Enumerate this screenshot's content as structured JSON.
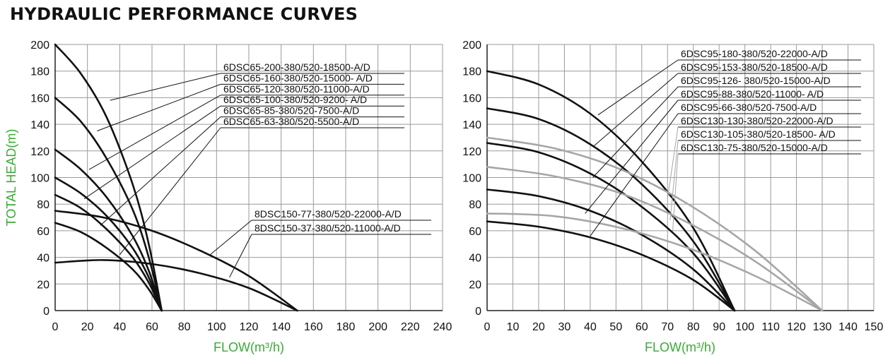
{
  "title": "HYDRAULIC PERFORMANCE CURVES",
  "colors": {
    "axis_label": "#3aaa35",
    "curve": "#111111",
    "curve_alt": "#a6a6a6",
    "grid": "#9a9a9a"
  },
  "chart_data": [
    {
      "type": "line",
      "xlabel": "FLOW(m³/h)",
      "ylabel": "TOTAL HEAD(m)",
      "xlim": [
        0,
        240
      ],
      "ylim": [
        0,
        200
      ],
      "xticks": [
        "0",
        "20",
        "40",
        "60",
        "80",
        "100",
        "120",
        "140",
        "160",
        "180",
        "200",
        "220",
        "240"
      ],
      "yticks": [
        "0",
        "20",
        "40",
        "60",
        "80",
        "100",
        "120",
        "140",
        "160",
        "180",
        "200"
      ],
      "grid": true,
      "series": [
        {
          "name": "6DSC65-200-380/520-18500-A/D",
          "color": "#111111",
          "x": [
            0,
            16,
            32,
            48,
            58,
            66
          ],
          "y": [
            200,
            178,
            145,
            95,
            50,
            0
          ]
        },
        {
          "name": "6DSC65-160-380/520-15000- A/D",
          "color": "#111111",
          "x": [
            0,
            16,
            32,
            48,
            58,
            66
          ],
          "y": [
            160,
            142,
            114,
            76,
            40,
            0
          ]
        },
        {
          "name": "6DSC65-120-380/520-11000-A/D",
          "color": "#111111",
          "x": [
            0,
            16,
            32,
            48,
            58,
            66
          ],
          "y": [
            121,
            106,
            85,
            56,
            30,
            0
          ]
        },
        {
          "name": "6DSC65-100-380/520-9200- A/D",
          "color": "#111111",
          "x": [
            0,
            16,
            32,
            48,
            58,
            66
          ],
          "y": [
            100,
            88,
            71,
            47,
            25,
            0
          ]
        },
        {
          "name": "6DSC65-85-380/520-7500-A/D",
          "color": "#111111",
          "x": [
            0,
            16,
            32,
            48,
            58,
            66
          ],
          "y": [
            87,
            77,
            61,
            40,
            21,
            0
          ]
        },
        {
          "name": "6DSC65-63-380/520-5500-A/D",
          "color": "#111111",
          "x": [
            0,
            16,
            32,
            48,
            58,
            66
          ],
          "y": [
            66,
            59,
            47,
            31,
            16,
            0
          ]
        },
        {
          "name": "8DSC150-77-380/520-22000-A/D",
          "color": "#111111",
          "x": [
            0,
            30,
            60,
            90,
            120,
            150
          ],
          "y": [
            75,
            70,
            60,
            45,
            26,
            0
          ]
        },
        {
          "name": "8DSC150-37-380/520-11000-A/D",
          "color": "#111111",
          "x": [
            0,
            30,
            60,
            90,
            120,
            150
          ],
          "y": [
            36,
            38,
            35,
            28,
            17,
            0
          ]
        }
      ],
      "annotations": [
        {
          "label": "6DSC65-200-380/520-18500-A/D",
          "at": [
            34,
            158
          ]
        },
        {
          "label": "6DSC65-160-380/520-15000- A/D",
          "at": [
            26,
            135
          ]
        },
        {
          "label": "6DSC65-120-380/520-11000-A/D",
          "at": [
            21,
            106
          ]
        },
        {
          "label": "6DSC65-100-380/520-9200- A/D",
          "at": [
            18,
            84
          ]
        },
        {
          "label": "6DSC65-85-380/520-7500-A/D",
          "at": [
            28,
            64
          ]
        },
        {
          "label": "6DSC65-63-380/520-5500-A/D",
          "at": [
            40,
            42
          ]
        },
        {
          "label": "8DSC150-77-380/520-22000-A/D",
          "at": [
            96,
            42
          ]
        },
        {
          "label": "8DSC150-37-380/520-11000-A/D",
          "at": [
            108,
            25
          ]
        }
      ]
    },
    {
      "type": "line",
      "xlabel": "FLOW(m³/h)",
      "ylabel": "",
      "xlim": [
        0,
        150
      ],
      "ylim": [
        0,
        200
      ],
      "xticks": [
        "0",
        "10",
        "20",
        "30",
        "40",
        "50",
        "60",
        "70",
        "80",
        "90",
        "100",
        "110",
        "120",
        "130",
        "140",
        "150"
      ],
      "yticks": [
        "0",
        "20",
        "40",
        "60",
        "80",
        "100",
        "120",
        "140",
        "160",
        "180",
        "200"
      ],
      "grid": true,
      "series": [
        {
          "name": "6DSC95-180-380/520-22000-A/D",
          "color": "#111111",
          "x": [
            0,
            20,
            40,
            60,
            80,
            96
          ],
          "y": [
            180,
            170,
            148,
            112,
            62,
            0
          ]
        },
        {
          "name": "6DSC95-153-380/520-18500-A/D",
          "color": "#111111",
          "x": [
            0,
            20,
            40,
            60,
            80,
            96
          ],
          "y": [
            152,
            144,
            125,
            95,
            52,
            0
          ]
        },
        {
          "name": "6DSC95-126- 380/520-15000-A/D",
          "color": "#111111",
          "x": [
            0,
            20,
            40,
            60,
            80,
            96
          ],
          "y": [
            126,
            119,
            103,
            78,
            43,
            0
          ]
        },
        {
          "name": "6DSC95-88-380/520-11000- A/D",
          "color": "#111111",
          "x": [
            0,
            20,
            40,
            60,
            80,
            96
          ],
          "y": [
            91,
            86,
            75,
            57,
            31,
            0
          ]
        },
        {
          "name": "6DSC95-66-380/520-7500-A/D",
          "color": "#111111",
          "x": [
            0,
            20,
            40,
            60,
            80,
            96
          ],
          "y": [
            67,
            63,
            55,
            42,
            23,
            0
          ]
        },
        {
          "name": "6DSC130-130-380/520-22000-A/D",
          "color": "#a6a6a6",
          "x": [
            0,
            26,
            52,
            78,
            104,
            130
          ],
          "y": [
            130,
            122,
            106,
            80,
            45,
            0
          ]
        },
        {
          "name": "6DSC130-105-380/520-18500- A/D",
          "color": "#a6a6a6",
          "x": [
            0,
            26,
            52,
            78,
            104,
            130
          ],
          "y": [
            108,
            101,
            88,
            66,
            37,
            0
          ]
        },
        {
          "name": "6DSC130-75-380/520-15000-A/D",
          "color": "#a6a6a6",
          "x": [
            0,
            26,
            52,
            78,
            104,
            130
          ],
          "y": [
            73,
            71,
            62,
            47,
            26,
            0
          ]
        }
      ],
      "annotations": [
        {
          "label": "6DSC95-180-380/520-22000-A/D",
          "at": [
            43,
            147
          ]
        },
        {
          "label": "6DSC95-153-380/520-18500-A/D",
          "at": [
            41,
            123
          ]
        },
        {
          "label": "6DSC95-126- 380/520-15000-A/D",
          "at": [
            41,
            100
          ]
        },
        {
          "label": "6DSC95-88-380/520-11000- A/D",
          "at": [
            38,
            73
          ]
        },
        {
          "label": "6DSC95-66-380/520-7500-A/D",
          "at": [
            40,
            56
          ]
        },
        {
          "label": "6DSC130-130-380/520-22000-A/D",
          "at": [
            70,
            84
          ]
        },
        {
          "label": "6DSC130-105-380/520-18500- A/D",
          "at": [
            71,
            68
          ]
        },
        {
          "label": "6DSC130-75-380/520-15000-A/D",
          "at": [
            72,
            60
          ]
        }
      ]
    }
  ]
}
